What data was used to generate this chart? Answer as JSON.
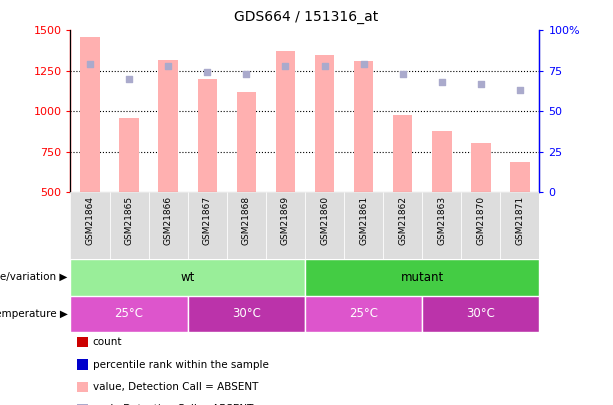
{
  "title": "GDS664 / 151316_at",
  "samples": [
    "GSM21864",
    "GSM21865",
    "GSM21866",
    "GSM21867",
    "GSM21868",
    "GSM21869",
    "GSM21860",
    "GSM21861",
    "GSM21862",
    "GSM21863",
    "GSM21870",
    "GSM21871"
  ],
  "bar_values": [
    1460,
    960,
    1320,
    1200,
    1120,
    1370,
    1350,
    1310,
    980,
    880,
    805,
    690
  ],
  "dot_values": [
    79,
    70,
    78,
    74,
    73,
    78,
    78,
    79,
    73,
    68,
    67,
    63
  ],
  "bar_color": "#FFB0B0",
  "dot_color": "#AAAACC",
  "ylim_left": [
    500,
    1500
  ],
  "ylim_right": [
    0,
    100
  ],
  "yticks_left": [
    500,
    750,
    1000,
    1250,
    1500
  ],
  "yticks_left_labels": [
    "500",
    "750",
    "1000",
    "1250",
    "1500"
  ],
  "yticks_right": [
    0,
    25,
    50,
    75,
    100
  ],
  "yticks_right_labels": [
    "0",
    "25",
    "50",
    "75",
    "100%"
  ],
  "left_tick_color": "red",
  "right_tick_color": "blue",
  "genotype_groups": [
    {
      "label": "wt",
      "start": 0,
      "end": 6,
      "color": "#99EE99"
    },
    {
      "label": "mutant",
      "start": 6,
      "end": 12,
      "color": "#44CC44"
    }
  ],
  "temperature_groups": [
    {
      "label": "25°C",
      "start": 0,
      "end": 3,
      "color": "#DD55CC"
    },
    {
      "label": "30°C",
      "start": 3,
      "end": 6,
      "color": "#BB33AA"
    },
    {
      "label": "25°C",
      "start": 6,
      "end": 9,
      "color": "#DD55CC"
    },
    {
      "label": "30°C",
      "start": 9,
      "end": 12,
      "color": "#BB33AA"
    }
  ],
  "legend_items": [
    {
      "label": "count",
      "color": "#CC0000"
    },
    {
      "label": "percentile rank within the sample",
      "color": "#0000CC"
    },
    {
      "label": "value, Detection Call = ABSENT",
      "color": "#FFB0B0"
    },
    {
      "label": "rank, Detection Call = ABSENT",
      "color": "#AAAACC"
    }
  ],
  "genotype_label": "genotype/variation",
  "temperature_label": "temperature",
  "bar_width": 0.5,
  "xticklabel_bg": "#DDDDDD"
}
